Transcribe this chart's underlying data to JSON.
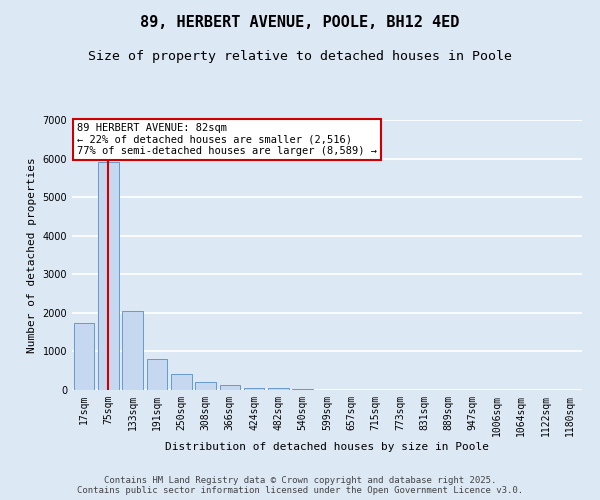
{
  "title": "89, HERBERT AVENUE, POOLE, BH12 4ED",
  "subtitle": "Size of property relative to detached houses in Poole",
  "xlabel": "Distribution of detached houses by size in Poole",
  "ylabel": "Number of detached properties",
  "categories": [
    "17sqm",
    "75sqm",
    "133sqm",
    "191sqm",
    "250sqm",
    "308sqm",
    "366sqm",
    "424sqm",
    "482sqm",
    "540sqm",
    "599sqm",
    "657sqm",
    "715sqm",
    "773sqm",
    "831sqm",
    "889sqm",
    "947sqm",
    "1006sqm",
    "1064sqm",
    "1122sqm",
    "1180sqm"
  ],
  "bar_heights": [
    1750,
    5900,
    2050,
    800,
    420,
    200,
    120,
    60,
    40,
    20,
    0,
    0,
    0,
    0,
    0,
    0,
    0,
    0,
    0,
    0,
    0
  ],
  "bar_color": "#c5d8f0",
  "bar_edge_color": "#6699cc",
  "background_color": "#dde8f5",
  "grid_color": "#ffffff",
  "vline_x": 1,
  "vline_color": "#cc0000",
  "annotation_text": "89 HERBERT AVENUE: 82sqm\n← 22% of detached houses are smaller (2,516)\n77% of semi-detached houses are larger (8,589) →",
  "annotation_box_facecolor": "#ffffff",
  "annotation_box_edgecolor": "#cc0000",
  "ylim": [
    0,
    7000
  ],
  "yticks": [
    0,
    1000,
    2000,
    3000,
    4000,
    5000,
    6000,
    7000
  ],
  "title_fontsize": 11,
  "subtitle_fontsize": 9.5,
  "axis_label_fontsize": 8,
  "tick_fontsize": 7,
  "annotation_fontsize": 7.5,
  "footer_fontsize": 6.5,
  "footer_line1": "Contains HM Land Registry data © Crown copyright and database right 2025.",
  "footer_line2": "Contains public sector information licensed under the Open Government Licence v3.0."
}
